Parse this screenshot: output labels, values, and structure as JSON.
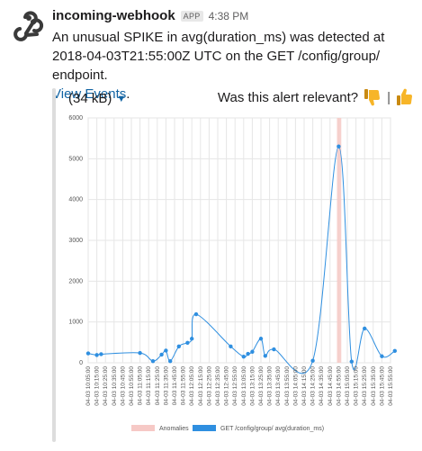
{
  "message": {
    "sender": "incoming-webhook",
    "app_badge": "APP",
    "timestamp": "4:38 PM",
    "text": "An unusual SPIKE in avg(duration_ms) was detected at 2018-04-03T21:55:00Z UTC on the GET /config/group/ endpoint.",
    "link_text": "View Events",
    "link_suffix": "."
  },
  "attachment": {
    "size": "(34 kB)",
    "feedback_question": "Was this alert relevant?",
    "separator": "|"
  },
  "icons": {
    "avatar": "webhook-icon",
    "thumbs_down": "thumbs-down-icon",
    "thumbs_up": "thumbs-up-icon",
    "caret": "caret-down-icon"
  },
  "colors": {
    "link": "#1264a3",
    "series": "#2f8fe0",
    "anomaly_band": "#f6c9c6",
    "thumb": "#f7b528"
  },
  "chart_data": {
    "type": "line",
    "title": "",
    "xlabel": "",
    "ylabel": "",
    "ylim": [
      0,
      6000
    ],
    "yticks": [
      0,
      1000,
      2000,
      3000,
      4000,
      5000,
      6000
    ],
    "grid": true,
    "legend_position": "bottom",
    "categories": [
      "04-03 10:05:00",
      "04-03 10:15:00",
      "04-03 10:25:00",
      "04-03 10:35:00",
      "04-03 10:45:00",
      "04-03 10:55:00",
      "04-03 11:05:00",
      "04-03 11:15:00",
      "04-03 11:25:00",
      "04-03 11:35:00",
      "04-03 11:45:00",
      "04-03 11:55:00",
      "04-03 12:05:00",
      "04-03 12:15:00",
      "04-03 12:25:00",
      "04-03 12:35:00",
      "04-03 12:45:00",
      "04-03 12:55:00",
      "04-03 13:05:00",
      "04-03 13:15:00",
      "04-03 13:25:00",
      "04-03 13:35:00",
      "04-03 13:45:00",
      "04-03 13:55:00",
      "04-03 14:05:00",
      "04-03 14:15:00",
      "04-03 14:25:00",
      "04-03 14:35:00",
      "04-03 14:45:00",
      "04-03 14:55:00",
      "04-03 15:05:00",
      "04-03 15:15:00",
      "04-03 15:25:00",
      "04-03 15:35:00",
      "04-03 15:45:00",
      "04-03 15:55:00"
    ],
    "series": [
      {
        "name": "GET /config/group/ avg(duration_ms)",
        "points": [
          [
            0,
            230
          ],
          [
            1,
            190
          ],
          [
            1.5,
            210
          ],
          [
            6,
            240
          ],
          [
            7.5,
            40
          ],
          [
            8.5,
            200
          ],
          [
            9,
            300
          ],
          [
            9.5,
            40
          ],
          [
            10.5,
            400
          ],
          [
            11.5,
            490
          ],
          [
            12,
            590
          ],
          [
            12.5,
            1190
          ],
          [
            16.5,
            400
          ],
          [
            18,
            150
          ],
          [
            18.5,
            220
          ],
          [
            19,
            270
          ],
          [
            20,
            590
          ],
          [
            20.5,
            170
          ],
          [
            21.5,
            330
          ],
          [
            26,
            50
          ],
          [
            29,
            5300
          ],
          [
            30.5,
            30
          ],
          [
            32,
            840
          ],
          [
            34,
            160
          ],
          [
            35.5,
            290
          ]
        ]
      }
    ],
    "anomalies": [
      {
        "name": "Anomalies",
        "x_range": [
          28.8,
          29.3
        ]
      }
    ]
  }
}
